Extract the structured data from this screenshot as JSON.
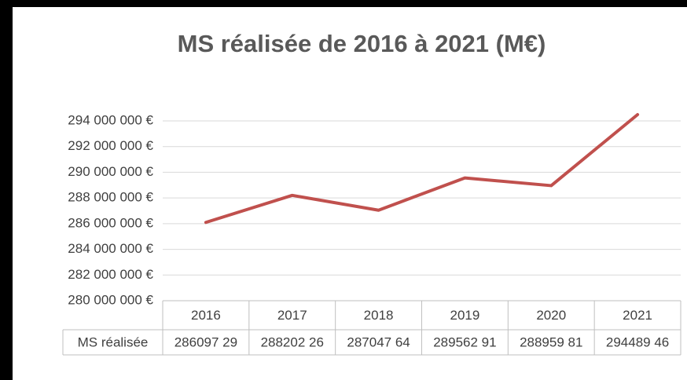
{
  "chart_data": {
    "type": "line",
    "title": "MS réalisée de 2016 à 2021 (M€)",
    "categories": [
      "2016",
      "2017",
      "2018",
      "2019",
      "2020",
      "2021"
    ],
    "series": [
      {
        "name": "MS réalisée",
        "color": "#c0504d",
        "values": [
          286097290,
          288202260,
          287047640,
          289562910,
          288959810,
          294489460
        ],
        "value_labels": [
          "286097 29",
          "288202 26",
          "287047 64",
          "289562 91",
          "288959 81",
          "294489 46"
        ]
      }
    ],
    "ylim": [
      280000000,
      294000000
    ],
    "yticks": [
      {
        "value": 280000000,
        "label": "280 000 000 €"
      },
      {
        "value": 282000000,
        "label": "282 000 000 €"
      },
      {
        "value": 284000000,
        "label": "284 000 000 €"
      },
      {
        "value": 286000000,
        "label": "286 000 000 €"
      },
      {
        "value": 288000000,
        "label": "288 000 000 €"
      },
      {
        "value": 290000000,
        "label": "290 000 000 €"
      },
      {
        "value": 292000000,
        "label": "292 000 000 €"
      },
      {
        "value": 294000000,
        "label": "294 000 000 €"
      }
    ],
    "grid": true
  }
}
